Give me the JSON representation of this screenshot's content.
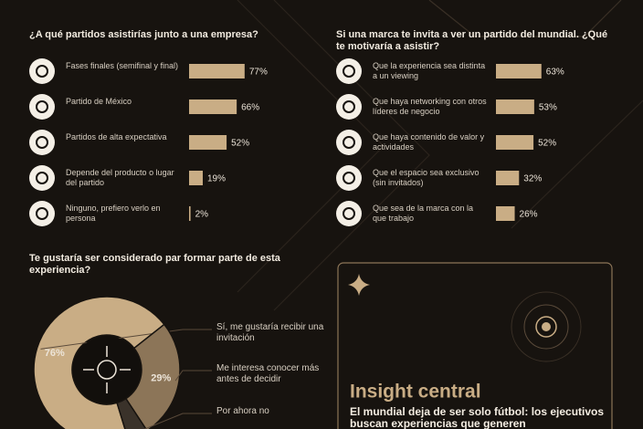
{
  "chart_data": [
    {
      "type": "hbar",
      "title": "¿A qué partidos asistirías junto a una empresa?",
      "categories": [
        "Fases finales (semifinal y final)",
        "Partido de México",
        "Partidos de alta expectativa",
        "Depende del producto o lugar del partido",
        "Ninguno, prefiero verlo en persona"
      ],
      "values": [
        77,
        66,
        52,
        19,
        2
      ],
      "value_labels": [
        "77%",
        "66%",
        "52%",
        "19%",
        "2%"
      ],
      "xlim": [
        0,
        100
      ],
      "color": "#c9ad85"
    },
    {
      "type": "hbar",
      "title": "Si una marca te invita a ver un partido del mundial. ¿Qué te motivaría a asistir?",
      "categories": [
        "Que la experiencia sea distinta a un viewing",
        "Que haya networking con otros líderes de negocio",
        "Que haya contenido de valor y actividades",
        "Que el espacio sea exclusivo (sin invitados)",
        "Que sea de la marca con la que trabajo"
      ],
      "values": [
        63,
        53,
        52,
        32,
        26
      ],
      "value_labels": [
        "63%",
        "53%",
        "52%",
        "32%",
        "26%"
      ],
      "xlim": [
        0,
        100
      ],
      "color": "#c9ad85"
    },
    {
      "type": "donut",
      "title": "Te gustaría ser considerado par formar parte de esta experiencia?",
      "categories": [
        "Sí, me gustaría recibir una invitación",
        "Me interesa conocer más antes de decidir",
        "Por ahora no"
      ],
      "values": [
        76,
        29,
        5
      ],
      "value_labels": [
        "76%",
        "29%",
        null
      ],
      "colors": [
        "#c9ad85",
        "#8c7558",
        "#3a322a"
      ]
    }
  ],
  "insight": {
    "title": "Insight central",
    "text": "El mundial deja de ser solo fútbol: los ejecutivos buscan experiencias que generen"
  }
}
